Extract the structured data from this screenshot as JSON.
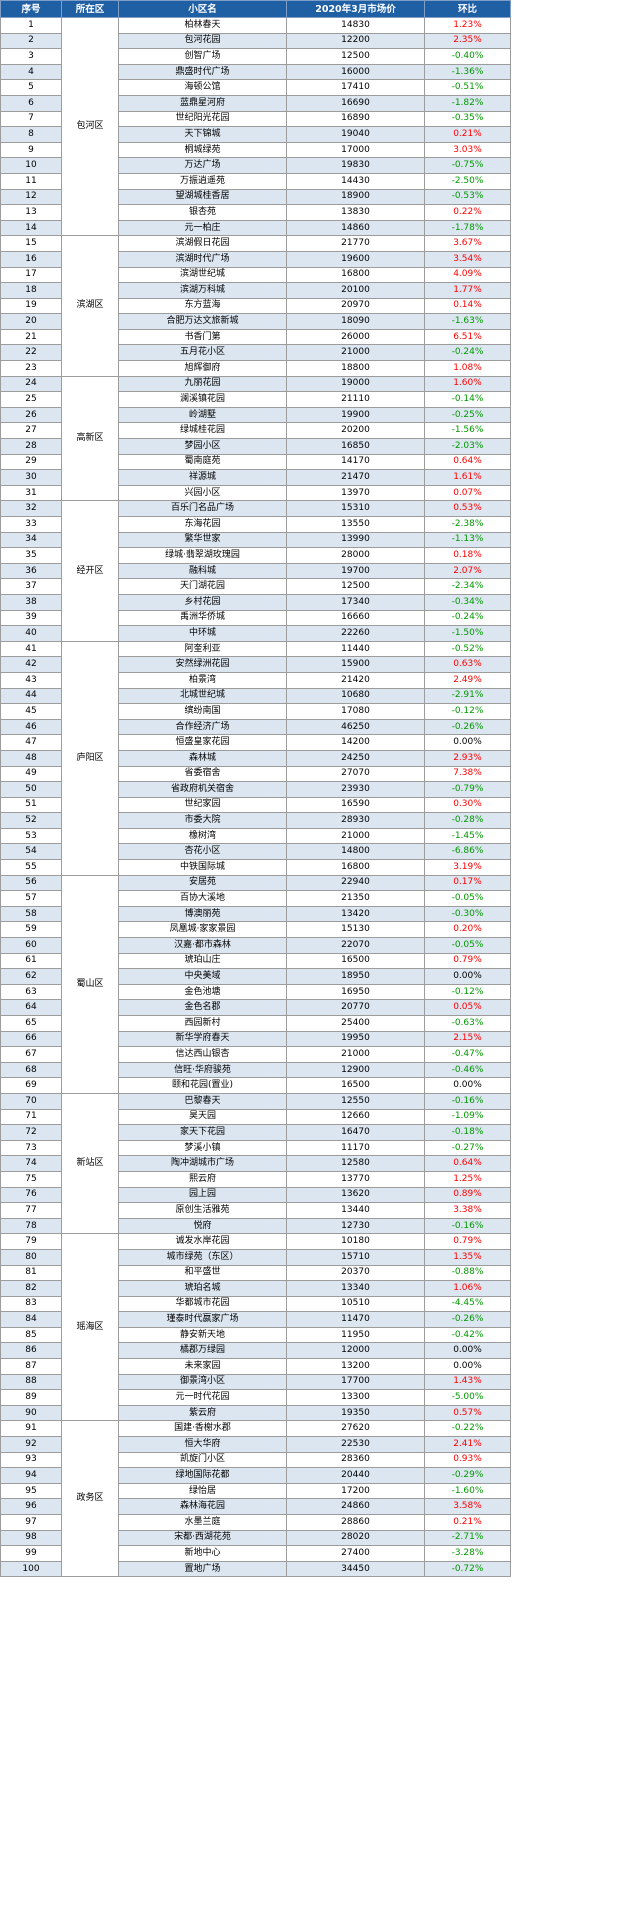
{
  "headers": {
    "no": "序号",
    "area": "所在区",
    "name": "小区名",
    "price": "2020年3月市场价",
    "change": "环比"
  },
  "rows": [
    {
      "no": "1",
      "area": "包河区",
      "name": "柏林春天",
      "price": "14830",
      "change": "1.23%"
    },
    {
      "no": "2",
      "area": "包河区",
      "name": "包河花园",
      "price": "12200",
      "change": "2.35%"
    },
    {
      "no": "3",
      "area": "包河区",
      "name": "创智广场",
      "price": "12500",
      "change": "-0.40%"
    },
    {
      "no": "4",
      "area": "包河区",
      "name": "鼎盛时代广场",
      "price": "16000",
      "change": "-1.36%"
    },
    {
      "no": "5",
      "area": "包河区",
      "name": "海顿公馆",
      "price": "17410",
      "change": "-0.51%"
    },
    {
      "no": "6",
      "area": "包河区",
      "name": "蓝鼎星河府",
      "price": "16690",
      "change": "-1.82%"
    },
    {
      "no": "7",
      "area": "包河区",
      "name": "世纪阳光花园",
      "price": "16890",
      "change": "-0.35%"
    },
    {
      "no": "8",
      "area": "包河区",
      "name": "天下锦城",
      "price": "19040",
      "change": "0.21%"
    },
    {
      "no": "9",
      "area": "包河区",
      "name": "桐城绿苑",
      "price": "17000",
      "change": "3.03%"
    },
    {
      "no": "10",
      "area": "包河区",
      "name": "万达广场",
      "price": "19830",
      "change": "-0.75%"
    },
    {
      "no": "11",
      "area": "包河区",
      "name": "万振逍遥苑",
      "price": "14430",
      "change": "-2.50%"
    },
    {
      "no": "12",
      "area": "包河区",
      "name": "望湖城桂香居",
      "price": "18900",
      "change": "-0.53%"
    },
    {
      "no": "13",
      "area": "包河区",
      "name": "银杏苑",
      "price": "13830",
      "change": "0.22%"
    },
    {
      "no": "14",
      "area": "包河区",
      "name": "元一柏庄",
      "price": "14860",
      "change": "-1.78%"
    },
    {
      "no": "15",
      "area": "滨湖区",
      "name": "滨湖假日花园",
      "price": "21770",
      "change": "3.67%"
    },
    {
      "no": "16",
      "area": "滨湖区",
      "name": "滨湖时代广场",
      "price": "19600",
      "change": "3.54%"
    },
    {
      "no": "17",
      "area": "滨湖区",
      "name": "滨湖世纪城",
      "price": "16800",
      "change": "4.09%"
    },
    {
      "no": "18",
      "area": "滨湖区",
      "name": "滨湖万科城",
      "price": "20100",
      "change": "1.77%"
    },
    {
      "no": "19",
      "area": "滨湖区",
      "name": "东方蓝海",
      "price": "20970",
      "change": "0.14%"
    },
    {
      "no": "20",
      "area": "滨湖区",
      "name": "合肥万达文旅新城",
      "price": "18090",
      "change": "-1.63%"
    },
    {
      "no": "21",
      "area": "滨湖区",
      "name": "书香门第",
      "price": "26000",
      "change": "6.51%"
    },
    {
      "no": "22",
      "area": "滨湖区",
      "name": "五月花小区",
      "price": "21000",
      "change": "-0.24%"
    },
    {
      "no": "23",
      "area": "滨湖区",
      "name": "旭辉御府",
      "price": "18800",
      "change": "1.08%"
    },
    {
      "no": "24",
      "area": "高新区",
      "name": "九丽花园",
      "price": "19000",
      "change": "1.60%"
    },
    {
      "no": "25",
      "area": "高新区",
      "name": "澜溪镇花园",
      "price": "21110",
      "change": "-0.14%"
    },
    {
      "no": "26",
      "area": "高新区",
      "name": "岭湖墅",
      "price": "19900",
      "change": "-0.25%"
    },
    {
      "no": "27",
      "area": "高新区",
      "name": "绿城桂花园",
      "price": "20200",
      "change": "-1.56%"
    },
    {
      "no": "28",
      "area": "高新区",
      "name": "梦园小区",
      "price": "16850",
      "change": "-2.03%"
    },
    {
      "no": "29",
      "area": "高新区",
      "name": "蜀南庭苑",
      "price": "14170",
      "change": "0.64%"
    },
    {
      "no": "30",
      "area": "高新区",
      "name": "祥源城",
      "price": "21470",
      "change": "1.61%"
    },
    {
      "no": "31",
      "area": "高新区",
      "name": "兴园小区",
      "price": "13970",
      "change": "0.07%"
    },
    {
      "no": "32",
      "area": "经开区",
      "name": "百乐门名品广场",
      "price": "15310",
      "change": "0.53%"
    },
    {
      "no": "33",
      "area": "经开区",
      "name": "东海花园",
      "price": "13550",
      "change": "-2.38%"
    },
    {
      "no": "34",
      "area": "经开区",
      "name": "繁华世家",
      "price": "13990",
      "change": "-1.13%"
    },
    {
      "no": "35",
      "area": "经开区",
      "name": "绿城·翡翠湖玫瑰园",
      "price": "28000",
      "change": "0.18%"
    },
    {
      "no": "36",
      "area": "经开区",
      "name": "融科城",
      "price": "19700",
      "change": "2.07%"
    },
    {
      "no": "37",
      "area": "经开区",
      "name": "天门湖花园",
      "price": "12500",
      "change": "-2.34%"
    },
    {
      "no": "38",
      "area": "经开区",
      "name": "乡村花园",
      "price": "17340",
      "change": "-0.34%"
    },
    {
      "no": "39",
      "area": "经开区",
      "name": "禹洲华侨城",
      "price": "16660",
      "change": "-0.24%"
    },
    {
      "no": "40",
      "area": "经开区",
      "name": "中环城",
      "price": "22260",
      "change": "-1.50%"
    },
    {
      "no": "41",
      "area": "庐阳区",
      "name": "阿奎利亚",
      "price": "11440",
      "change": "-0.52%"
    },
    {
      "no": "42",
      "area": "庐阳区",
      "name": "安然绿洲花园",
      "price": "15900",
      "change": "0.63%"
    },
    {
      "no": "43",
      "area": "庐阳区",
      "name": "柏景湾",
      "price": "21420",
      "change": "2.49%"
    },
    {
      "no": "44",
      "area": "庐阳区",
      "name": "北城世纪城",
      "price": "10680",
      "change": "-2.91%"
    },
    {
      "no": "45",
      "area": "庐阳区",
      "name": "缤纷南国",
      "price": "17080",
      "change": "-0.12%"
    },
    {
      "no": "46",
      "area": "庐阳区",
      "name": "合作经济广场",
      "price": "46250",
      "change": "-0.26%"
    },
    {
      "no": "47",
      "area": "庐阳区",
      "name": "恒盛皇家花园",
      "price": "14200",
      "change": "0.00%"
    },
    {
      "no": "48",
      "area": "庐阳区",
      "name": "森林城",
      "price": "24250",
      "change": "2.93%"
    },
    {
      "no": "49",
      "area": "庐阳区",
      "name": "省委宿舍",
      "price": "27070",
      "change": "7.38%"
    },
    {
      "no": "50",
      "area": "庐阳区",
      "name": "省政府机关宿舍",
      "price": "23930",
      "change": "-0.79%"
    },
    {
      "no": "51",
      "area": "庐阳区",
      "name": "世纪家园",
      "price": "16590",
      "change": "0.30%"
    },
    {
      "no": "52",
      "area": "庐阳区",
      "name": "市委大院",
      "price": "28930",
      "change": "-0.28%"
    },
    {
      "no": "53",
      "area": "庐阳区",
      "name": "橡树湾",
      "price": "21000",
      "change": "-1.45%"
    },
    {
      "no": "54",
      "area": "庐阳区",
      "name": "杏花小区",
      "price": "14800",
      "change": "-6.86%"
    },
    {
      "no": "55",
      "area": "庐阳区",
      "name": "中铁国际城",
      "price": "16800",
      "change": "3.19%"
    },
    {
      "no": "56",
      "area": "蜀山区",
      "name": "安居苑",
      "price": "22940",
      "change": "0.17%"
    },
    {
      "no": "57",
      "area": "蜀山区",
      "name": "百协大溪地",
      "price": "21350",
      "change": "-0.05%"
    },
    {
      "no": "58",
      "area": "蜀山区",
      "name": "博澳丽苑",
      "price": "13420",
      "change": "-0.30%"
    },
    {
      "no": "59",
      "area": "蜀山区",
      "name": "凤凰城·家家景园",
      "price": "15130",
      "change": "0.20%"
    },
    {
      "no": "60",
      "area": "蜀山区",
      "name": "汉嘉·都市森林",
      "price": "22070",
      "change": "-0.05%"
    },
    {
      "no": "61",
      "area": "蜀山区",
      "name": "琥珀山庄",
      "price": "16500",
      "change": "0.79%"
    },
    {
      "no": "62",
      "area": "蜀山区",
      "name": "中央美域",
      "price": "18950",
      "change": "0.00%"
    },
    {
      "no": "63",
      "area": "蜀山区",
      "name": "金色池塘",
      "price": "16950",
      "change": "-0.12%"
    },
    {
      "no": "64",
      "area": "蜀山区",
      "name": "金色名郡",
      "price": "20770",
      "change": "0.05%"
    },
    {
      "no": "65",
      "area": "蜀山区",
      "name": "西园新村",
      "price": "25400",
      "change": "-0.63%"
    },
    {
      "no": "66",
      "area": "蜀山区",
      "name": "新华学府春天",
      "price": "19950",
      "change": "2.15%"
    },
    {
      "no": "67",
      "area": "蜀山区",
      "name": "信达西山银杏",
      "price": "21000",
      "change": "-0.47%"
    },
    {
      "no": "68",
      "area": "蜀山区",
      "name": "信旺·华府骏苑",
      "price": "12900",
      "change": "-0.46%"
    },
    {
      "no": "69",
      "area": "蜀山区",
      "name": "颐和花园(置业)",
      "price": "16500",
      "change": "0.00%"
    },
    {
      "no": "70",
      "area": "新站区",
      "name": "巴黎春天",
      "price": "12550",
      "change": "-0.16%"
    },
    {
      "no": "71",
      "area": "新站区",
      "name": "昊天园",
      "price": "12660",
      "change": "-1.09%"
    },
    {
      "no": "72",
      "area": "新站区",
      "name": "家天下花园",
      "price": "16470",
      "change": "-0.18%"
    },
    {
      "no": "73",
      "area": "新站区",
      "name": "梦溪小镇",
      "price": "11170",
      "change": "-0.27%"
    },
    {
      "no": "74",
      "area": "新站区",
      "name": "陶冲湖城市广场",
      "price": "12580",
      "change": "0.64%"
    },
    {
      "no": "75",
      "area": "新站区",
      "name": "熙云府",
      "price": "13770",
      "change": "1.25%"
    },
    {
      "no": "76",
      "area": "新站区",
      "name": "园上园",
      "price": "13620",
      "change": "0.89%"
    },
    {
      "no": "77",
      "area": "新站区",
      "name": "原创生活雅苑",
      "price": "13440",
      "change": "3.38%"
    },
    {
      "no": "78",
      "area": "新站区",
      "name": "悦府",
      "price": "12730",
      "change": "-0.16%"
    },
    {
      "no": "79",
      "area": "瑶海区",
      "name": "诚发水岸花园",
      "price": "10180",
      "change": "0.79%"
    },
    {
      "no": "80",
      "area": "瑶海区",
      "name": "城市绿苑（东区）",
      "price": "15710",
      "change": "1.35%"
    },
    {
      "no": "81",
      "area": "瑶海区",
      "name": "和平盛世",
      "price": "20370",
      "change": "-0.88%"
    },
    {
      "no": "82",
      "area": "瑶海区",
      "name": "琥珀名城",
      "price": "13340",
      "change": "1.06%"
    },
    {
      "no": "83",
      "area": "瑶海区",
      "name": "华都城市花园",
      "price": "10510",
      "change": "-4.45%"
    },
    {
      "no": "84",
      "area": "瑶海区",
      "name": "瑾泰时代嬴家广场",
      "price": "11470",
      "change": "-0.26%"
    },
    {
      "no": "85",
      "area": "瑶海区",
      "name": "静安新天地",
      "price": "11950",
      "change": "-0.42%"
    },
    {
      "no": "86",
      "area": "瑶海区",
      "name": "橘郡万绿园",
      "price": "12000",
      "change": "0.00%"
    },
    {
      "no": "87",
      "area": "瑶海区",
      "name": "未来家园",
      "price": "13200",
      "change": "0.00%"
    },
    {
      "no": "88",
      "area": "瑶海区",
      "name": "御景湾小区",
      "price": "17700",
      "change": "1.43%"
    },
    {
      "no": "89",
      "area": "瑶海区",
      "name": "元一时代花园",
      "price": "13300",
      "change": "-5.00%"
    },
    {
      "no": "90",
      "area": "瑶海区",
      "name": "紫云府",
      "price": "19350",
      "change": "0.57%"
    },
    {
      "no": "91",
      "area": "政务区",
      "name": "国建·香榭水郡",
      "price": "27620",
      "change": "-0.22%"
    },
    {
      "no": "92",
      "area": "政务区",
      "name": "恒大华府",
      "price": "22530",
      "change": "2.41%"
    },
    {
      "no": "93",
      "area": "政务区",
      "name": "凯旋门小区",
      "price": "28360",
      "change": "0.93%"
    },
    {
      "no": "94",
      "area": "政务区",
      "name": "绿地国际花都",
      "price": "20440",
      "change": "-0.29%"
    },
    {
      "no": "95",
      "area": "政务区",
      "name": "绿怡居",
      "price": "17200",
      "change": "-1.60%"
    },
    {
      "no": "96",
      "area": "政务区",
      "name": "森林海花园",
      "price": "24860",
      "change": "3.58%"
    },
    {
      "no": "97",
      "area": "政务区",
      "name": "水墨兰庭",
      "price": "28860",
      "change": "0.21%"
    },
    {
      "no": "98",
      "area": "政务区",
      "name": "宋都·西湖花苑",
      "price": "28020",
      "change": "-2.71%"
    },
    {
      "no": "99",
      "area": "政务区",
      "name": "新地中心",
      "price": "27400",
      "change": "-3.28%"
    },
    {
      "no": "100",
      "area": "政务区",
      "name": "置地广场",
      "price": "34450",
      "change": "-0.72%"
    }
  ],
  "colors": {
    "header_bg": "#1f5fa3",
    "stripe": "#dce6f1",
    "positive": "#ff0000",
    "negative": "#009900"
  }
}
